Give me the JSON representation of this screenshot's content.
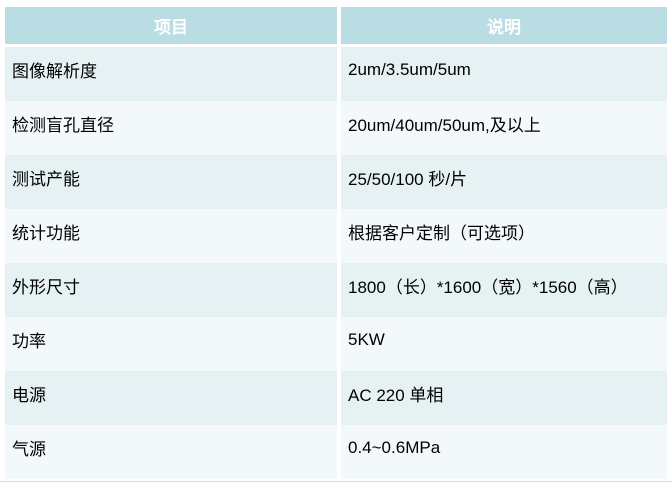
{
  "table": {
    "headers": {
      "item": "项目",
      "desc": "说明"
    },
    "colors": {
      "header_bg": "#b9dde3",
      "header_text": "#ffffff",
      "row_odd_bg": "#e6f1f4",
      "row_even_bg": "#f3f9fb",
      "body_text": "#000000"
    },
    "rows": [
      {
        "item": "图像解析度",
        "desc": "2um/3.5um/5um"
      },
      {
        "item": "检测盲孔直径",
        "desc": "20um/40um/50um,及以上"
      },
      {
        "item": "测试产能",
        "desc": "25/50/100 秒/片"
      },
      {
        "item": "统计功能",
        "desc": "根据客户定制（可选项）"
      },
      {
        "item": "外形尺寸",
        "desc": "1800（长）*1600（宽）*1560（高）"
      },
      {
        "item": "功率",
        "desc": "5KW"
      },
      {
        "item": "电源",
        "desc": "AC 220 单相"
      },
      {
        "item": "气源",
        "desc": "0.4~0.6MPa"
      }
    ]
  }
}
